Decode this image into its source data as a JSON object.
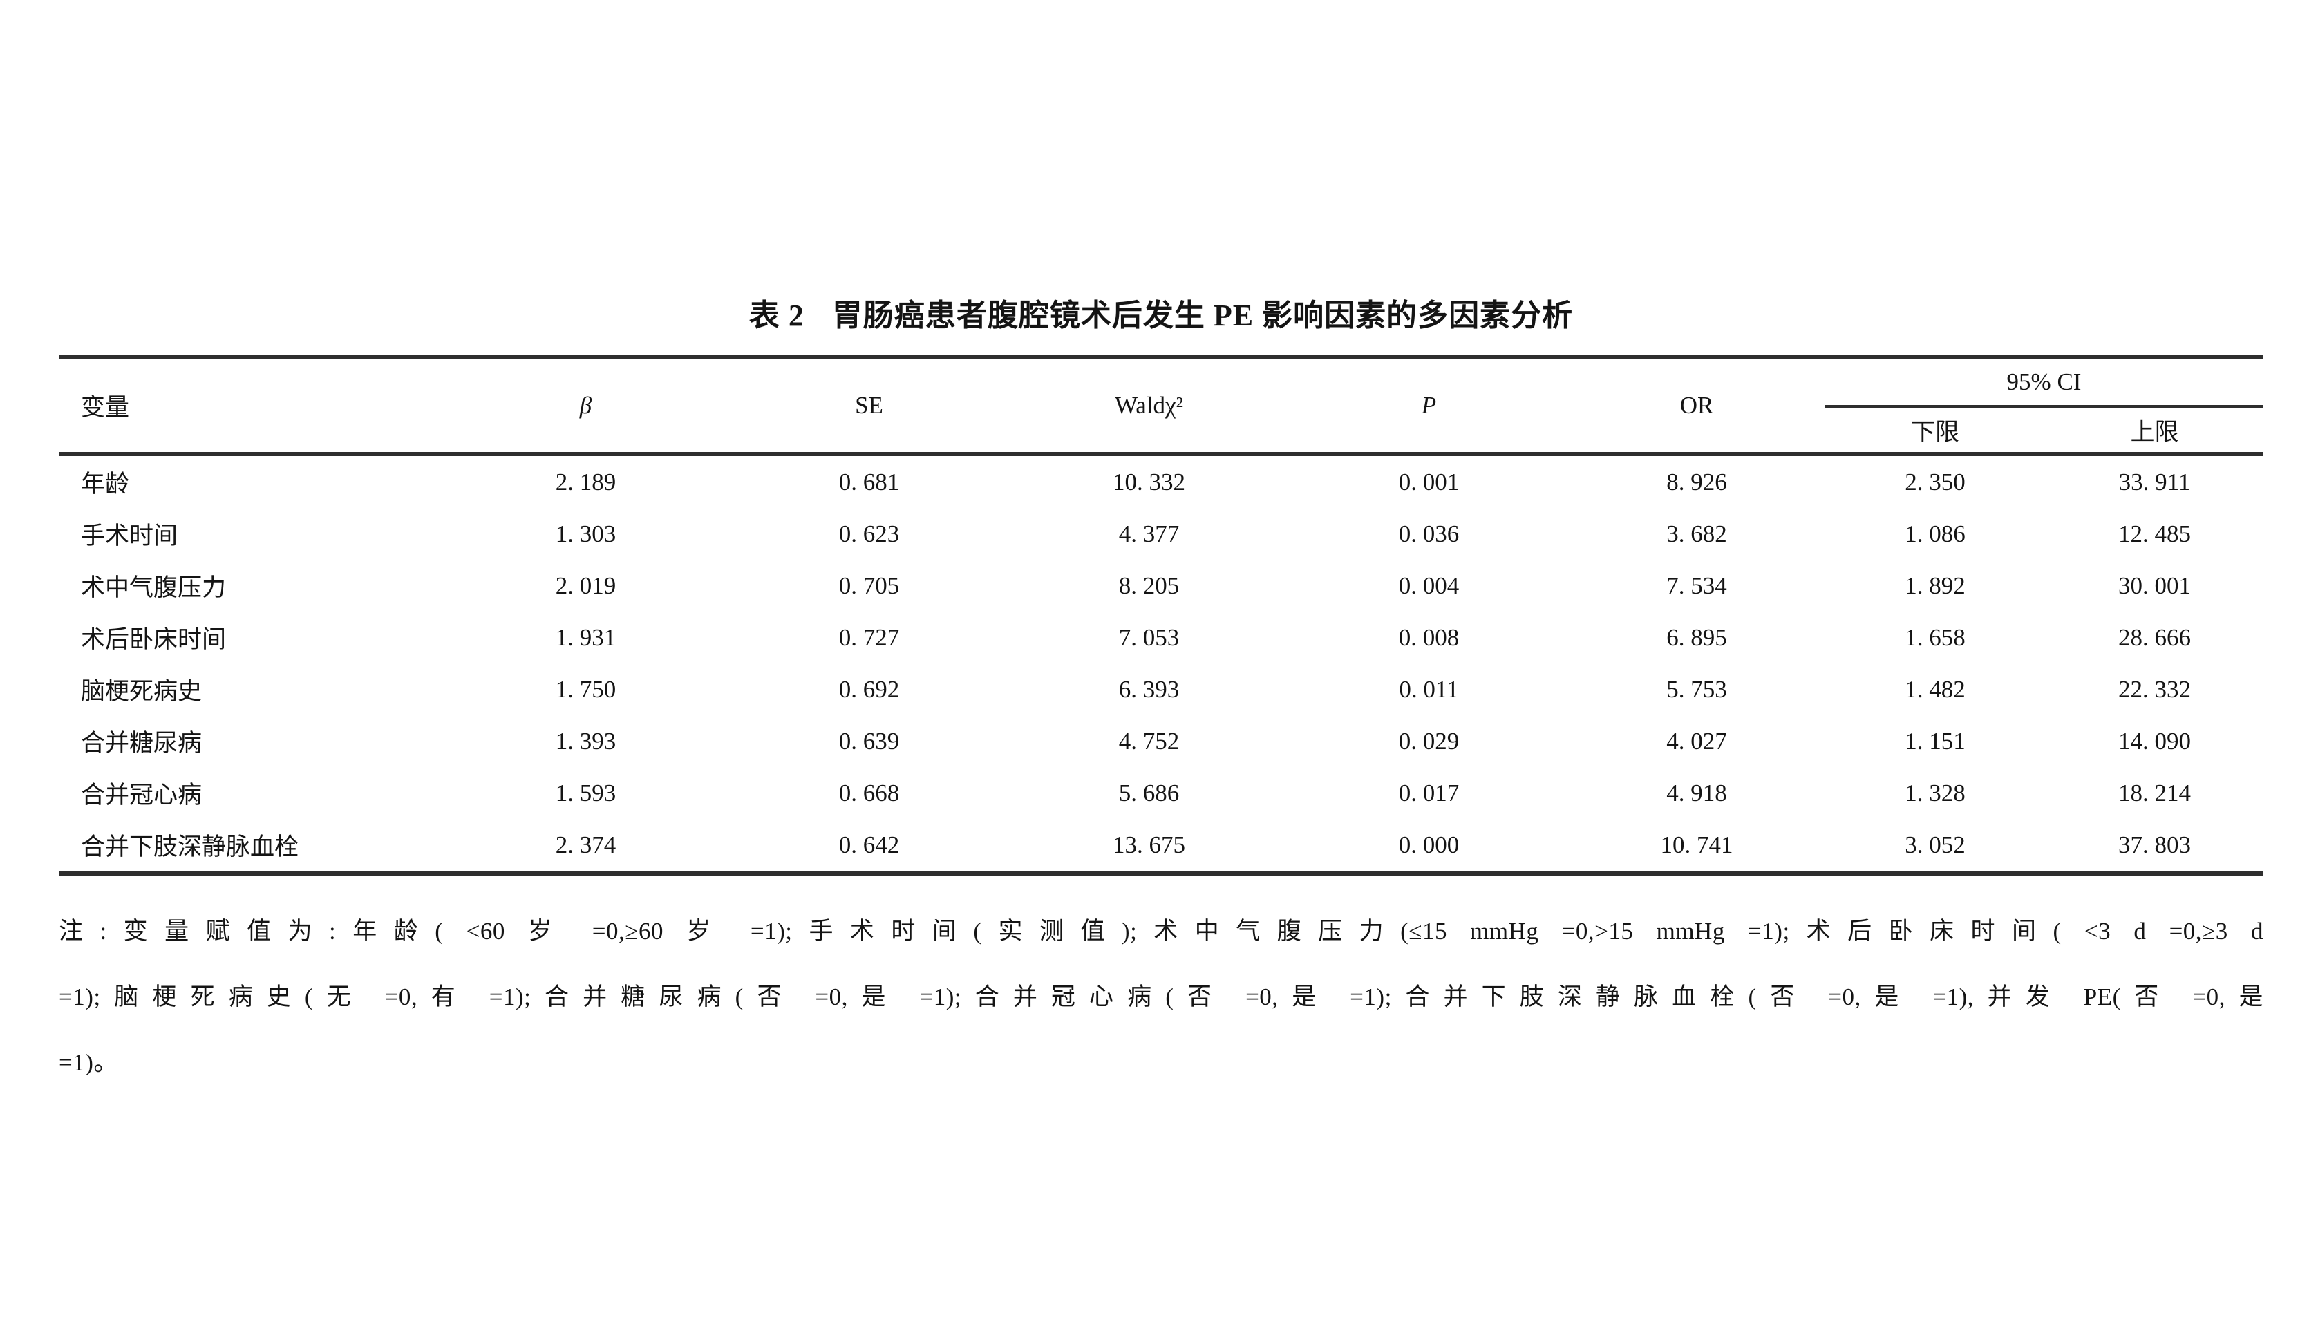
{
  "title": {
    "tag": "表 2",
    "text": "胃肠癌患者腹腔镜术后发生 PE 影响因素的多因素分析"
  },
  "table": {
    "headers": {
      "variable": "变量",
      "beta": "β",
      "se": "SE",
      "wald": "Waldχ²",
      "p": "P",
      "or": "OR",
      "ci_group": "95% CI",
      "ci_lower": "下限",
      "ci_upper": "上限"
    },
    "rows": [
      [
        "年龄",
        "2. 189",
        "0. 681",
        "10. 332",
        "0. 001",
        "8. 926",
        "2. 350",
        "33. 911"
      ],
      [
        "手术时间",
        "1. 303",
        "0. 623",
        "4. 377",
        "0. 036",
        "3. 682",
        "1. 086",
        "12. 485"
      ],
      [
        "术中气腹压力",
        "2. 019",
        "0. 705",
        "8. 205",
        "0. 004",
        "7. 534",
        "1. 892",
        "30. 001"
      ],
      [
        "术后卧床时间",
        "1. 931",
        "0. 727",
        "7. 053",
        "0. 008",
        "6. 895",
        "1. 658",
        "28. 666"
      ],
      [
        "脑梗死病史",
        "1. 750",
        "0. 692",
        "6. 393",
        "0. 011",
        "5. 753",
        "1. 482",
        "22. 332"
      ],
      [
        "合并糖尿病",
        "1. 393",
        "0. 639",
        "4. 752",
        "0. 029",
        "4. 027",
        "1. 151",
        "14. 090"
      ],
      [
        "合并冠心病",
        "1. 593",
        "0. 668",
        "5. 686",
        "0. 017",
        "4. 918",
        "1. 328",
        "18. 214"
      ],
      [
        "合并下肢深静脉血栓",
        "2. 374",
        "0. 642",
        "13. 675",
        "0. 000",
        "10. 741",
        "3. 052",
        "37. 803"
      ]
    ]
  },
  "note": {
    "lines": [
      "注:变量赋值为:年龄( <60 岁 =0,≥60 岁 =1);手术时间(实测值);术中气腹压力(≤15 mmHg =0,>15 mmHg =1);术后卧床时间( <3 d =0,≥3 d",
      "=1);脑梗死病史(无 =0,有 =1);合并糖尿病(否 =0,是 =1);合并冠心病(否 =0,是 =1);合并下肢深静脉血栓(否 =0,是 =1),并发 PE(否 =0,是",
      "=1)。"
    ]
  },
  "colors": {
    "rule": "#2e2e2e",
    "text": "#141414",
    "background": "#ffffff"
  }
}
